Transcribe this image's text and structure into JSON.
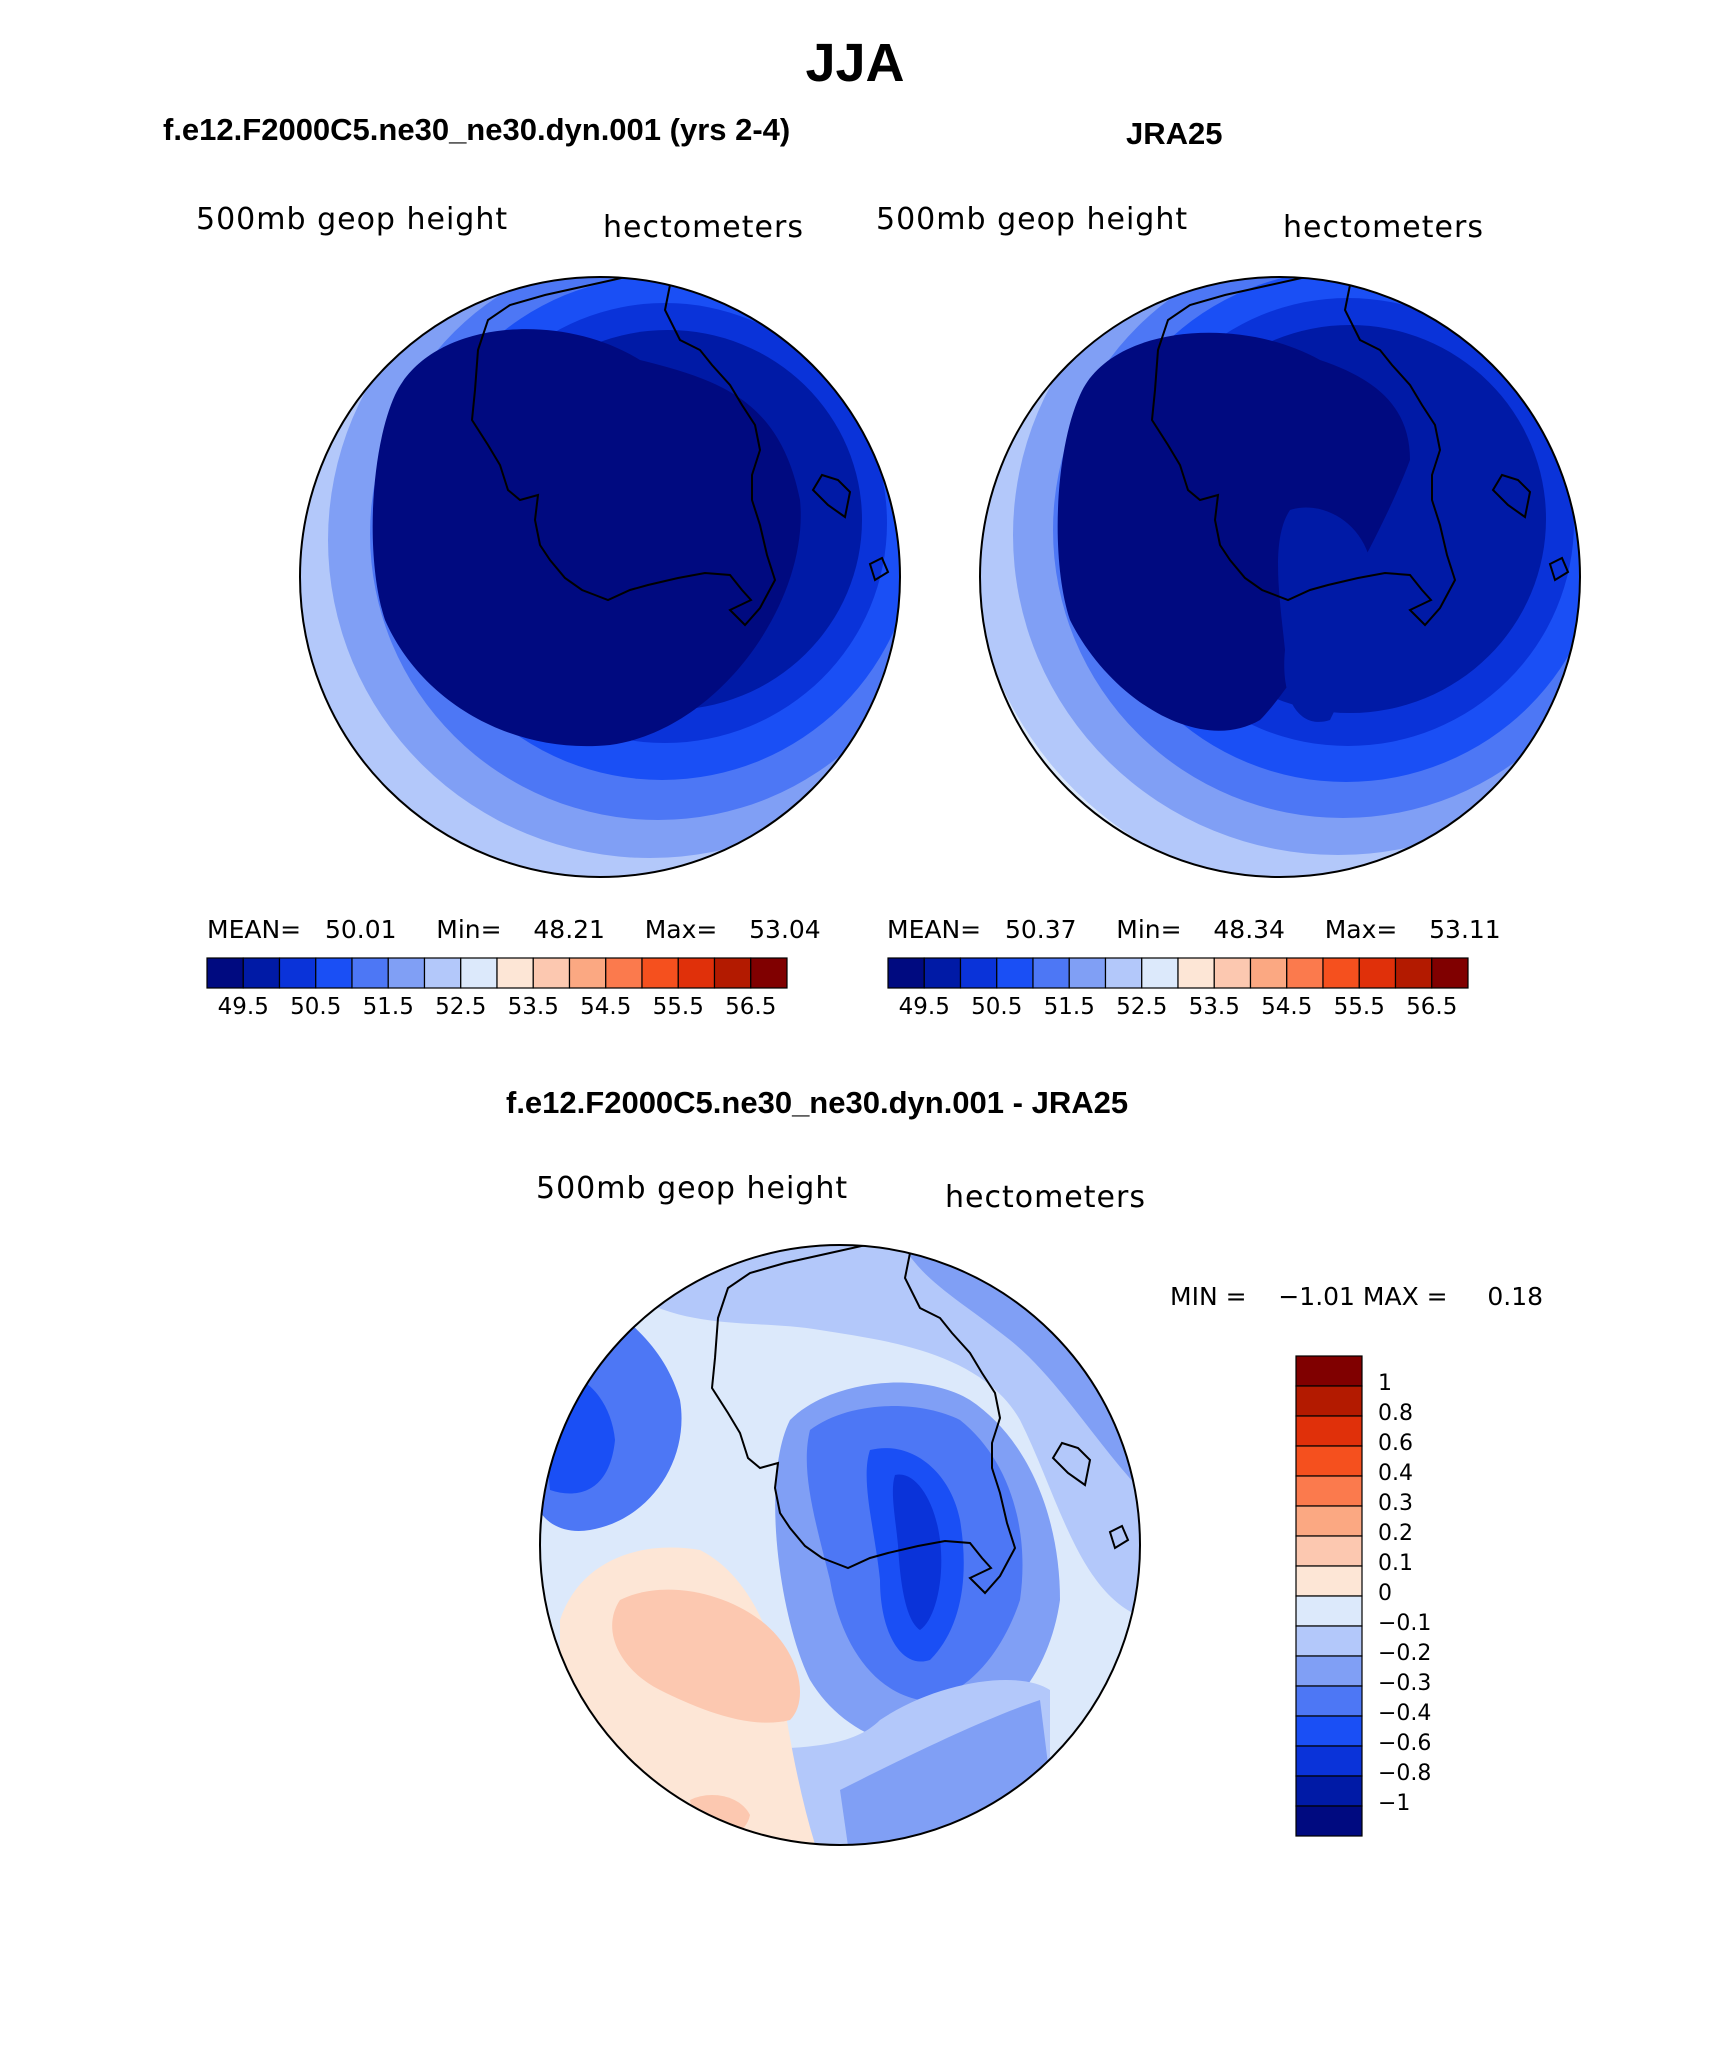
{
  "title": "JJA",
  "panels": [
    {
      "id": "model",
      "title": "f.e12.F2000C5.ne30_ne30.dyn.001 (yrs 2-4)",
      "left_label": "500mb geop height",
      "right_label": "hectometers",
      "stats": {
        "mean_label": "MEAN=",
        "mean": "50.01",
        "min_label": "Min=",
        "min": "48.21",
        "max_label": "Max=",
        "max": "53.04"
      }
    },
    {
      "id": "obs",
      "title": "JRA25",
      "left_label": "500mb geop height",
      "right_label": "hectometers",
      "stats": {
        "mean_label": "MEAN=",
        "mean": "50.37",
        "min_label": "Min=",
        "min": "48.34",
        "max_label": "Max=",
        "max": "53.11"
      }
    },
    {
      "id": "diff",
      "title": "f.e12.F2000C5.ne30_ne30.dyn.001 - JRA25",
      "left_label": "500mb geop height",
      "right_label": "hectometers",
      "stats": {
        "min_label": "MIN =",
        "min": "−1.01",
        "max_label": "MAX =",
        "max": "0.18"
      }
    }
  ],
  "abs_colorbar": {
    "colors": [
      "#000a80",
      "#001aa6",
      "#0a33d9",
      "#1a4ff5",
      "#4d77f5",
      "#809ff5",
      "#b3c8fa",
      "#dce9fb",
      "#fde6d6",
      "#fcc8b0",
      "#fba882",
      "#fb7a4d",
      "#f5501e",
      "#e0300a",
      "#b31a00",
      "#800000"
    ],
    "ticks": [
      "49.5",
      "50.5",
      "51.5",
      "52.5",
      "53.5",
      "54.5",
      "55.5",
      "56.5"
    ]
  },
  "diff_colorbar": {
    "colors_top_to_bottom": [
      "#800000",
      "#b31a00",
      "#e0300a",
      "#f5501e",
      "#fb7a4d",
      "#fba882",
      "#fcc8b0",
      "#fde6d6",
      "#dce9fb",
      "#b3c8fa",
      "#809ff5",
      "#4d77f5",
      "#1a4ff5",
      "#0a33d9",
      "#001aa6",
      "#000a80"
    ],
    "ticks": [
      "1",
      "0.8",
      "0.6",
      "0.4",
      "0.3",
      "0.2",
      "0.1",
      "0",
      "−0.1",
      "−0.2",
      "−0.3",
      "−0.4",
      "−0.6",
      "−0.8",
      "−1"
    ]
  }
}
